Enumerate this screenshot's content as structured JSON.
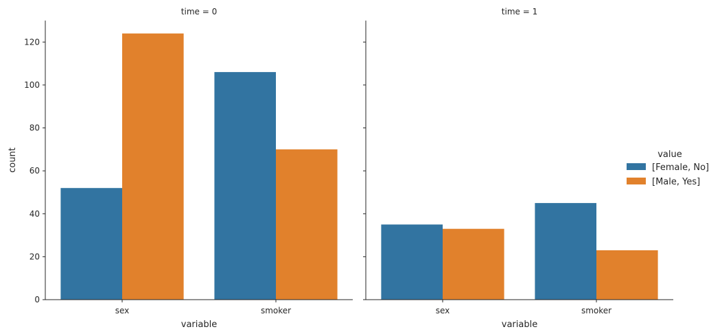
{
  "chart_data": {
    "type": "bar",
    "facet_variable": "time",
    "panels": [
      {
        "title": "time = 0",
        "xlabel": "variable",
        "ylabel": "count",
        "categories": [
          "sex",
          "smoker"
        ],
        "series": [
          {
            "name": "[Female, No]",
            "values": [
              52,
              106
            ]
          },
          {
            "name": "[Male, Yes]",
            "values": [
              124,
              70
            ]
          }
        ]
      },
      {
        "title": "time = 1",
        "xlabel": "variable",
        "ylabel": "",
        "categories": [
          "sex",
          "smoker"
        ],
        "series": [
          {
            "name": "[Female, No]",
            "values": [
              35,
              45
            ]
          },
          {
            "name": "[Male, Yes]",
            "values": [
              33,
              23
            ]
          }
        ]
      }
    ],
    "ylim": [
      0,
      130
    ],
    "yticks": [
      0,
      20,
      40,
      60,
      80,
      100,
      120
    ],
    "shared_y": true,
    "grid": false,
    "legend": {
      "title": "value",
      "placement": "right",
      "entries": [
        "[Female, No]",
        "[Male, Yes]"
      ]
    },
    "colors": [
      "#3274a1",
      "#e1812c"
    ]
  }
}
